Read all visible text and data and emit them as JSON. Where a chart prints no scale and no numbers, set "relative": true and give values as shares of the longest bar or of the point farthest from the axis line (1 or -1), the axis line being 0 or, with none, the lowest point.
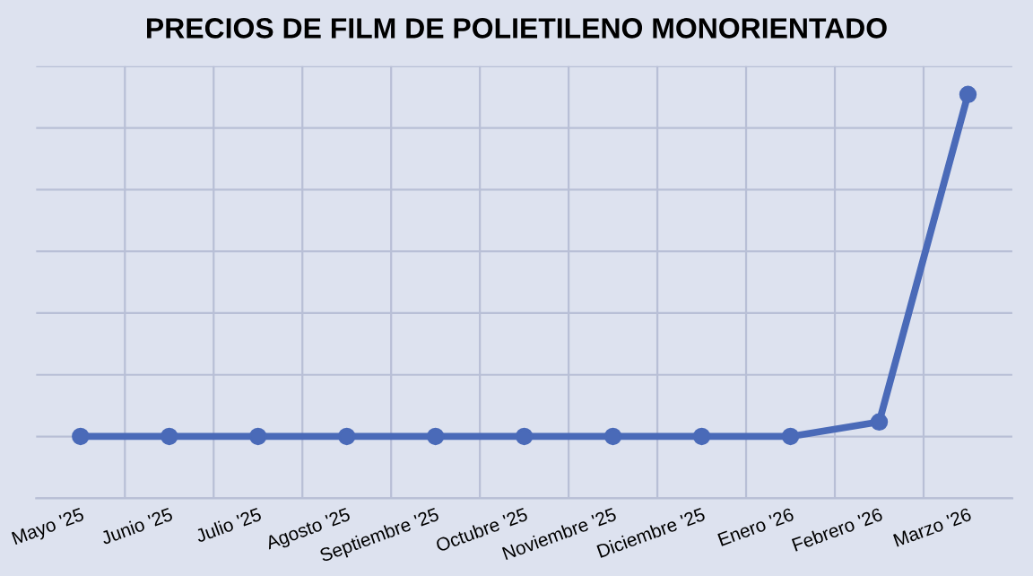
{
  "chart_data": {
    "type": "line",
    "title": "PRECIOS DE FILM DE POLIETILENO MONORIENTADO",
    "relative": true,
    "categories": [
      "Mayo '25",
      "Junio '25",
      "Julio '25",
      "Agosto '25",
      "Septiembre '25",
      "Octubre '25",
      "Noviembre '25",
      "Diciembre '25",
      "Enero '26",
      "Febrero '26",
      "Marzo '26"
    ],
    "series": [
      {
        "color": "#4a6ab8",
        "values": [
          0.153,
          0.153,
          0.153,
          0.153,
          0.153,
          0.153,
          0.153,
          0.153,
          0.153,
          0.189,
          1
        ]
      }
    ],
    "grid": true,
    "marker": "circle",
    "line_style": "solid",
    "tick_labels": "x",
    "legend": false
  }
}
